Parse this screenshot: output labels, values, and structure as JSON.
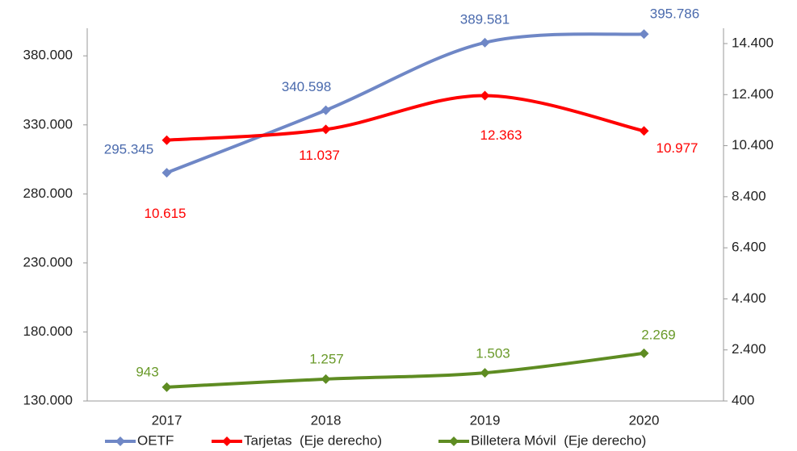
{
  "chart_data": {
    "type": "line",
    "categories": [
      "2017",
      "2018",
      "2019",
      "2020"
    ],
    "series": [
      {
        "name": "OETF",
        "color": "#6f87c6",
        "label_color": "#4a6aad",
        "values": [
          295345,
          340598,
          389581,
          395786
        ],
        "value_labels": [
          "295.345",
          "340.598",
          "389.581",
          "395.786"
        ]
      },
      {
        "name": "Tarjetas  (Eje derecho)",
        "color": "#ff0000",
        "label_color": "#ff0000",
        "axis": "y2",
        "values": [
          10615,
          11037,
          12363,
          10977
        ],
        "value_labels": [
          "10.615",
          "11.037",
          "12.363",
          "10.977"
        ]
      },
      {
        "name": "Billetera Móvil  (Eje derecho)",
        "color": "#5e8c22",
        "label_color": "#6a9a2a",
        "axis": "y2",
        "values": [
          943,
          1257,
          1503,
          2269
        ],
        "value_labels": [
          "943",
          "1.257",
          "1.503",
          "2.269"
        ]
      }
    ],
    "ylim": [
      130000,
      400000
    ],
    "yticks": [
      {
        "value": 130000,
        "label": "130.000"
      },
      {
        "value": 180000,
        "label": "180.000"
      },
      {
        "value": 230000,
        "label": "230.000"
      },
      {
        "value": 280000,
        "label": "280.000"
      },
      {
        "value": 330000,
        "label": "330.000"
      },
      {
        "value": 380000,
        "label": "380.000"
      }
    ],
    "y2lim": [
      400,
      15000
    ],
    "y2ticks": [
      400,
      {
        "value": 2400,
        "label": "2.400"
      },
      {
        "value": 4400,
        "label": "4.400"
      },
      {
        "value": 6400,
        "label": "6.400"
      },
      {
        "value": 8400,
        "label": "8.400"
      },
      {
        "value": 10400,
        "label": "10.400"
      },
      {
        "value": 12400,
        "label": "12.400"
      },
      {
        "value": 14400,
        "label": "14.400"
      }
    ],
    "legend": "bottom"
  }
}
